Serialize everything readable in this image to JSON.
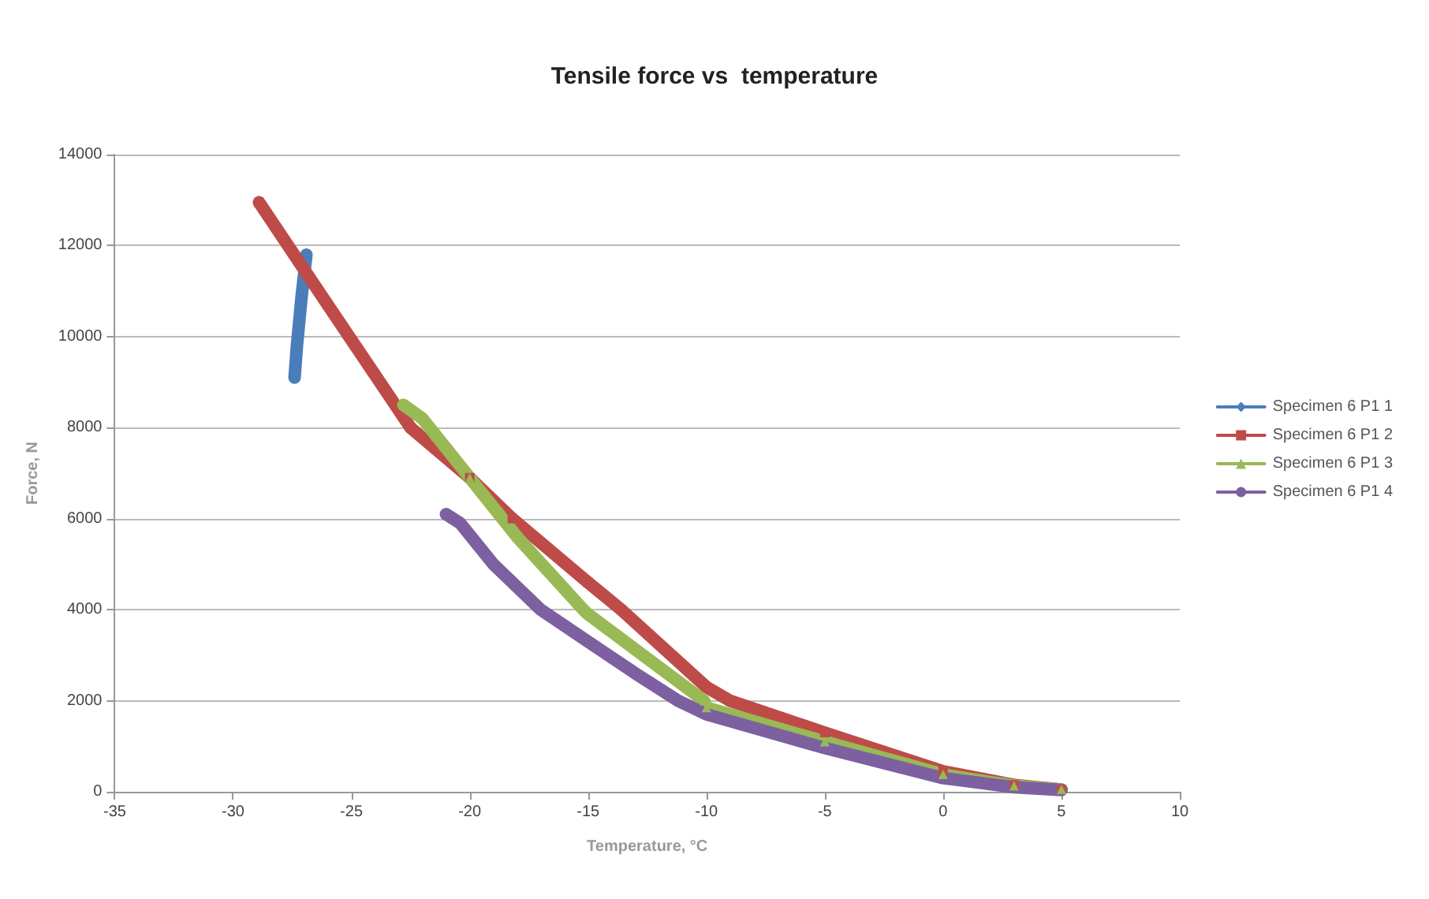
{
  "chart_data": {
    "type": "line",
    "title": "Tensile force vs  temperature",
    "xlabel": "Temperature, °C",
    "ylabel": "Force, N",
    "xlim": [
      -35,
      10
    ],
    "xticks": [
      -35,
      -30,
      -25,
      -20,
      -15,
      -10,
      -5,
      0,
      5,
      10
    ],
    "ylim": [
      0,
      14000
    ],
    "yticks": [
      0,
      2000,
      4000,
      6000,
      8000,
      10000,
      12000,
      14000
    ],
    "grid": "y",
    "legend": "right",
    "line_style": "solid",
    "series": [
      {
        "name": "Specimen 6 P1 1",
        "color": "#4a7ebb",
        "marker": "diamond",
        "x": [
          -27.4,
          -27.3,
          -27.1,
          -26.9
        ],
        "values": [
          9100,
          9800,
          10900,
          11800
        ]
      },
      {
        "name": "Specimen 6 P1 2",
        "color": "#be4b48",
        "marker": "square",
        "x": [
          -28.9,
          -26,
          -22.5,
          -20,
          -18.2,
          -15,
          -13.6,
          -10,
          -9,
          -5,
          0,
          3,
          5
        ],
        "values": [
          12950,
          10700,
          8000,
          6900,
          6000,
          4600,
          4000,
          2300,
          2000,
          1300,
          450,
          150,
          50
        ]
      },
      {
        "name": "Specimen 6 P1 3",
        "color": "#98b954",
        "marker": "triangle",
        "x": [
          -22.8,
          -22,
          -20,
          -18,
          -15.2,
          -15,
          -10.1,
          -10,
          -5,
          0,
          3,
          5
        ],
        "values": [
          8500,
          8200,
          6900,
          5600,
          4000,
          3900,
          2000,
          1850,
          1100,
          380,
          130,
          50
        ]
      },
      {
        "name": "Specimen 6 P1 4",
        "color": "#7d60a0",
        "marker": "none",
        "x": [
          -21,
          -20.4,
          -19,
          -17,
          -15,
          -13,
          -11.2,
          -10,
          -5,
          0,
          3,
          5
        ],
        "values": [
          6100,
          5900,
          5000,
          4000,
          3300,
          2600,
          2000,
          1700,
          960,
          300,
          100,
          40
        ]
      }
    ]
  }
}
